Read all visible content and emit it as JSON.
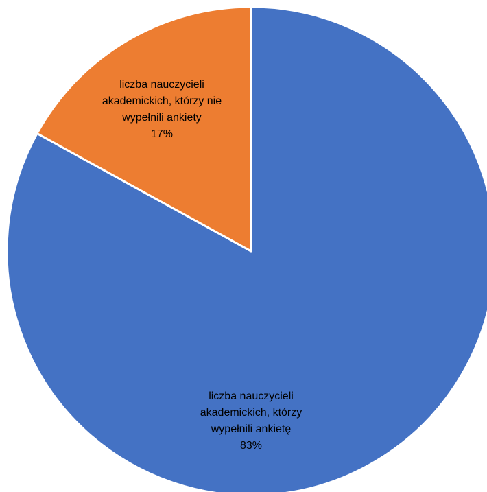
{
  "chart_data": {
    "type": "pie",
    "categories": [
      "liczba nauczycieli akademickich, którzy wypełnili ankietę",
      "liczba nauczycieli akademickich, którzy nie wypełnili ankiety"
    ],
    "values": [
      83,
      17
    ],
    "unit": "%",
    "colors": [
      "#4472c4",
      "#ed7d31"
    ],
    "legend": "none",
    "data_labels": [
      {
        "lines": [
          "liczba nauczycieli",
          "akademickich, którzy",
          "wypełnili ankietę"
        ],
        "percent": "83%"
      },
      {
        "lines": [
          "liczba nauczycieli",
          "akademickich, którzy nie",
          "wypełnili ankiety"
        ],
        "percent": "17%"
      }
    ]
  }
}
